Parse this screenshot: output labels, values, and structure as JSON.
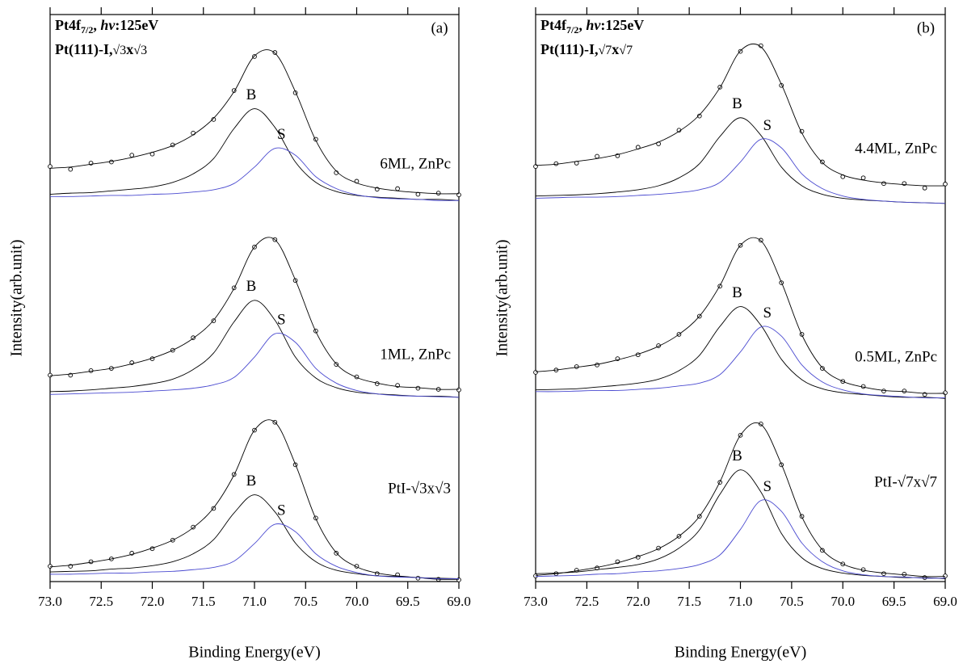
{
  "chart_data": [
    {
      "type": "line",
      "panel_label": "(a)",
      "label_1": [
        "Pt4f",
        "7/2",
        ", ",
        "hv",
        ":125eV"
      ],
      "label_2": [
        "Pt(111)-I,",
        "√3",
        "x",
        "√3"
      ],
      "xlabel": "Binding Energy(eV)",
      "ylabel": "Intensity(arb.unit)",
      "xlim": [
        73,
        69
      ],
      "ylim": [
        0,
        100
      ],
      "xticks": [
        {
          "value": 73,
          "label": "73.0"
        },
        72.5,
        {
          "value": 72,
          "label": "72.0"
        },
        71.5,
        {
          "value": 71,
          "label": "71.0"
        },
        70.5,
        {
          "value": 70,
          "label": "70.0"
        },
        69.5,
        {
          "value": 69,
          "label": "69.0"
        }
      ],
      "x": [
        73,
        72.8,
        72.6,
        72.4,
        72.2,
        72,
        71.8,
        71.6,
        71.4,
        71.2,
        71,
        70.8,
        70.6,
        70.4,
        70.2,
        70,
        69.8,
        69.6,
        69.4,
        69.2,
        69
      ],
      "spectra": [
        {
          "label": "6ML, ZnPc",
          "series": [
            {
              "mark": "circle",
              "color": "#000000",
              "values": [
                73.2,
                72.7,
                73.8,
                74.0,
                75.2,
                75.4,
                77.0,
                79.1,
                81.5,
                86.6,
                92.6,
                93.3,
                86.2,
                78.0,
                72.1,
                70.6,
                69.2,
                69.3,
                68.3,
                68.5,
                68.2
              ]
            },
            {
              "mark": "line",
              "color": "#000000",
              "values": [
                72.9,
                73.1,
                73.6,
                74.1,
                74.8,
                75.7,
                76.9,
                78.8,
                81.7,
                86.4,
                92.7,
                93.2,
                86.4,
                77.8,
                72.4,
                70.3,
                69.4,
                68.9,
                68.6,
                68.4,
                68.4
              ]
            },
            {
              "mark": "line",
              "color": "#000000",
              "label": "B",
              "values": [
                68.3,
                68.5,
                68.6,
                68.9,
                69.2,
                69.6,
                70.4,
                71.9,
                74.6,
                79.9,
                83.4,
                80.1,
                74.0,
                70.4,
                68.8,
                68.1,
                67.8,
                67.6,
                67.4,
                67.4,
                67.2
              ]
            },
            {
              "mark": "line",
              "color": "#4a4ad0",
              "label": "S",
              "values": [
                67.9,
                67.9,
                68.0,
                68.1,
                68.1,
                68.3,
                68.4,
                68.7,
                69.1,
                70.2,
                73.1,
                76.4,
                75.2,
                71.4,
                69.3,
                68.2,
                67.7,
                67.5,
                67.4,
                67.2,
                67.2
              ]
            }
          ]
        },
        {
          "label": "1ML, ZnPc",
          "series": [
            {
              "mark": "circle",
              "color": "#000000",
              "values": [
                36.4,
                36.4,
                37.2,
                37.6,
                38.6,
                39.3,
                40.8,
                43.0,
                46.0,
                51.8,
                59.0,
                60.3,
                53.1,
                44.2,
                38.3,
                36.1,
                34.9,
                34.6,
                34.1,
                33.9,
                33.8
              ]
            },
            {
              "mark": "line",
              "color": "#000000",
              "values": [
                36.3,
                36.6,
                37.1,
                37.6,
                38.4,
                39.4,
                40.8,
                42.9,
                46.1,
                51.7,
                59.0,
                60.3,
                53.2,
                44.1,
                38.4,
                36.0,
                35.0,
                34.4,
                34.2,
                33.9,
                33.9
              ]
            },
            {
              "mark": "line",
              "color": "#000000",
              "label": "B",
              "values": [
                33.5,
                33.6,
                33.8,
                34.1,
                34.4,
                34.9,
                35.7,
                37.4,
                40.3,
                45.8,
                49.6,
                46.1,
                39.6,
                35.9,
                34.2,
                33.4,
                33.1,
                32.9,
                32.7,
                32.7,
                32.5
              ]
            },
            {
              "mark": "line",
              "color": "#4a4ad0",
              "label": "S",
              "values": [
                33.0,
                33.1,
                33.2,
                33.3,
                33.4,
                33.6,
                33.8,
                34.1,
                34.7,
                36.0,
                39.6,
                43.7,
                42.2,
                37.6,
                35.0,
                33.7,
                33.1,
                32.8,
                32.7,
                32.6,
                32.5
              ]
            }
          ]
        },
        {
          "label": "PtI-√3x√3",
          "series": [
            {
              "mark": "circle",
              "color": "#000000",
              "values": [
                2.7,
                2.7,
                3.5,
                4.0,
                5.0,
                5.8,
                7.3,
                9.6,
                12.9,
                18.9,
                26.7,
                28.1,
                20.6,
                11.2,
                5.0,
                2.7,
                1.4,
                1.2,
                0.6,
                0.4,
                0.3
              ]
            },
            {
              "mark": "line",
              "color": "#000000",
              "values": [
                2.6,
                2.9,
                3.4,
                4.0,
                4.8,
                5.9,
                7.3,
                9.5,
                13.0,
                18.8,
                26.7,
                28.1,
                20.7,
                11.1,
                5.1,
                2.6,
                1.5,
                1.0,
                0.7,
                0.4,
                0.4
              ]
            },
            {
              "mark": "line",
              "color": "#000000",
              "label": "B",
              "values": [
                1.7,
                1.8,
                1.9,
                2.2,
                2.4,
                2.8,
                3.5,
                4.9,
                7.4,
                12.1,
                15.3,
                12.3,
                6.8,
                3.5,
                2.0,
                1.4,
                1.0,
                0.9,
                0.7,
                0.6,
                0.5
              ]
            },
            {
              "mark": "line",
              "color": "#4a4ad0",
              "label": "S",
              "values": [
                1.3,
                1.3,
                1.4,
                1.5,
                1.5,
                1.7,
                1.8,
                2.1,
                2.5,
                3.6,
                6.7,
                10.1,
                8.8,
                4.9,
                2.7,
                1.6,
                1.0,
                0.8,
                0.7,
                0.5,
                0.5
              ]
            }
          ]
        }
      ]
    },
    {
      "type": "line",
      "panel_label": "(b)",
      "label_1": [
        "Pt4f",
        "7/2",
        ", ",
        "hv",
        ":125eV"
      ],
      "label_2": [
        "Pt(111)-I,",
        "√7",
        "x",
        "√7"
      ],
      "xlabel": "Binding Energy(eV)",
      "ylabel": "Intensity(arb.unit)",
      "xlim": [
        73,
        69
      ],
      "ylim": [
        0,
        100
      ],
      "xticks": [
        {
          "value": 73,
          "label": "73.0"
        },
        72.5,
        {
          "value": 72,
          "label": "72.0"
        },
        71.5,
        {
          "value": 71,
          "label": "71.0"
        },
        70.5,
        {
          "value": 70,
          "label": "70.0"
        },
        69.5,
        {
          "value": 69,
          "label": "69.0"
        }
      ],
      "x": [
        73,
        72.8,
        72.6,
        72.4,
        72.2,
        72,
        71.8,
        71.6,
        71.4,
        71.2,
        71,
        70.8,
        70.6,
        70.4,
        70.2,
        70,
        69.8,
        69.6,
        69.4,
        69.2,
        69
      ],
      "spectra": [
        {
          "label": "4.4ML, ZnPc",
          "series": [
            {
              "mark": "circle",
              "color": "#000000",
              "values": [
                73.2,
                73.7,
                73.8,
                75.0,
                75.1,
                76.6,
                77.2,
                79.6,
                82.1,
                87.2,
                93.5,
                94.5,
                87.5,
                79.4,
                74.0,
                71.4,
                71.2,
                70.2,
                70.2,
                69.4,
                70.1
              ]
            },
            {
              "mark": "line",
              "color": "#000000",
              "values": [
                73.4,
                73.6,
                74.1,
                74.6,
                75.3,
                76.3,
                77.5,
                79.4,
                82.3,
                87.1,
                93.6,
                94.3,
                87.7,
                79.1,
                73.9,
                71.7,
                70.8,
                70.3,
                70.0,
                69.8,
                69.8
              ]
            },
            {
              "mark": "line",
              "color": "#000000",
              "label": "B",
              "values": [
                68.0,
                68.1,
                68.2,
                68.4,
                68.7,
                69.1,
                69.8,
                71.2,
                73.7,
                78.5,
                81.8,
                78.7,
                73.1,
                69.8,
                68.3,
                67.6,
                67.3,
                67.1,
                66.9,
                66.8,
                66.7
              ]
            },
            {
              "mark": "line",
              "color": "#4a4ad0",
              "label": "S",
              "values": [
                67.6,
                67.7,
                67.8,
                67.8,
                67.9,
                68.1,
                68.3,
                68.6,
                69.1,
                70.4,
                74.0,
                78.0,
                76.5,
                71.9,
                69.3,
                68.0,
                67.4,
                67.1,
                66.9,
                66.8,
                66.7
              ]
            }
          ]
        },
        {
          "label": "0.5ML, ZnPc",
          "series": [
            {
              "mark": "circle",
              "color": "#000000",
              "values": [
                36.9,
                37.3,
                37.9,
                38.2,
                39.3,
                40.0,
                41.6,
                43.6,
                46.8,
                52.1,
                59.3,
                60.2,
                52.7,
                43.6,
                37.6,
                35.3,
                34.4,
                33.6,
                33.6,
                33.0,
                33.3
              ]
            },
            {
              "mark": "line",
              "color": "#000000",
              "values": [
                37.0,
                37.3,
                37.8,
                38.3,
                39.1,
                40.1,
                41.5,
                43.6,
                46.8,
                52.2,
                59.3,
                60.1,
                52.8,
                43.5,
                37.7,
                35.3,
                34.3,
                33.7,
                33.5,
                33.2,
                33.2
              ]
            },
            {
              "mark": "line",
              "color": "#000000",
              "label": "B",
              "values": [
                33.8,
                33.9,
                34.0,
                34.3,
                34.6,
                35.0,
                35.7,
                37.2,
                39.9,
                45.0,
                48.5,
                45.2,
                39.2,
                35.6,
                34.0,
                33.3,
                33.0,
                32.7,
                32.5,
                32.5,
                32.3
              ]
            },
            {
              "mark": "line",
              "color": "#4a4ad0",
              "label": "S",
              "values": [
                33.5,
                33.5,
                33.6,
                33.7,
                33.7,
                33.9,
                34.1,
                34.5,
                35.0,
                36.5,
                40.5,
                44.9,
                43.3,
                38.2,
                35.2,
                33.8,
                33.1,
                32.8,
                32.6,
                32.4,
                32.4
              ]
            }
          ]
        },
        {
          "label": "PtI-√7x√7",
          "series": [
            {
              "mark": "circle",
              "color": "#000000",
              "values": [
                1.0,
                1.4,
                2.0,
                2.4,
                3.5,
                4.3,
                5.9,
                8.0,
                11.5,
                17.5,
                25.8,
                27.8,
                20.6,
                11.5,
                5.5,
                3.1,
                2.1,
                1.4,
                1.3,
                0.7,
                1.0
              ]
            },
            {
              "mark": "line",
              "color": "#000000",
              "values": [
                1.1,
                1.4,
                1.9,
                2.5,
                3.3,
                4.4,
                5.8,
                8.0,
                11.5,
                17.6,
                25.8,
                27.7,
                20.7,
                11.4,
                5.6,
                3.1,
                2.0,
                1.5,
                1.2,
                0.9,
                0.9
              ]
            },
            {
              "mark": "line",
              "color": "#000000",
              "label": "B",
              "values": [
                1.4,
                1.5,
                1.7,
                2.1,
                2.5,
                3.0,
                4.0,
                5.9,
                9.1,
                15.4,
                19.7,
                15.8,
                8.5,
                4.2,
                2.3,
                1.5,
                1.1,
                0.9,
                0.7,
                0.7,
                0.5
              ]
            },
            {
              "mark": "line",
              "color": "#4a4ad0",
              "label": "S",
              "values": [
                0.9,
                1.0,
                1.1,
                1.3,
                1.4,
                1.7,
                1.9,
                2.3,
                3.0,
                4.7,
                9.2,
                14.3,
                12.4,
                6.8,
                3.5,
                1.9,
                1.2,
                0.9,
                0.8,
                0.6,
                0.6
              ]
            }
          ]
        }
      ]
    }
  ]
}
